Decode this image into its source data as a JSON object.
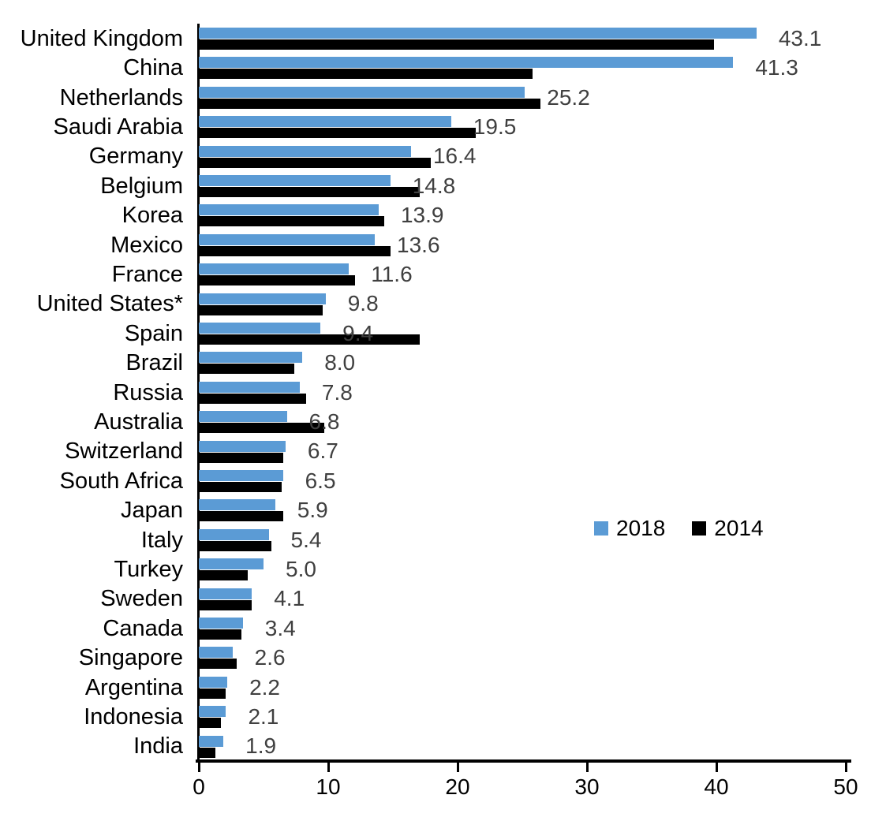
{
  "chart_data": {
    "type": "bar",
    "orientation": "horizontal",
    "title": "",
    "xlabel": "",
    "ylabel": "",
    "xlim": [
      0,
      50
    ],
    "xticks": [
      0,
      10,
      20,
      30,
      40,
      50
    ],
    "grid": false,
    "legend_position": "middle-right",
    "value_label_decimals": 1,
    "value_label_series": "2018",
    "categories": [
      "United Kingdom",
      "China",
      "Netherlands",
      "Saudi Arabia",
      "Germany",
      "Belgium",
      "Korea",
      "Mexico",
      "France",
      "United States*",
      "Spain",
      "Brazil",
      "Russia",
      "Australia",
      "Switzerland",
      "South Africa",
      "Japan",
      "Italy",
      "Turkey",
      "Sweden",
      "Canada",
      "Singapore",
      "Argentina",
      "Indonesia",
      "India"
    ],
    "series": [
      {
        "name": "2018",
        "color": "#5B9BD5",
        "values": [
          43.1,
          41.3,
          25.2,
          19.5,
          16.4,
          14.8,
          13.9,
          13.6,
          11.6,
          9.8,
          9.4,
          8.0,
          7.8,
          6.8,
          6.7,
          6.5,
          5.9,
          5.4,
          5.0,
          4.1,
          3.4,
          2.6,
          2.2,
          2.1,
          1.9
        ]
      },
      {
        "name": "2014",
        "color": "#000000",
        "values": [
          39.8,
          25.8,
          26.4,
          21.4,
          17.9,
          17.1,
          14.3,
          14.8,
          12.1,
          9.6,
          17.1,
          7.4,
          8.3,
          9.7,
          6.5,
          6.4,
          6.5,
          5.6,
          3.8,
          4.1,
          3.3,
          2.9,
          2.1,
          1.7,
          1.3
        ]
      }
    ]
  },
  "colors": {
    "series_2018": "#5B9BD5",
    "series_2014": "#000000",
    "value_label": "#404040",
    "axis": "#000000",
    "background": "#ffffff"
  }
}
